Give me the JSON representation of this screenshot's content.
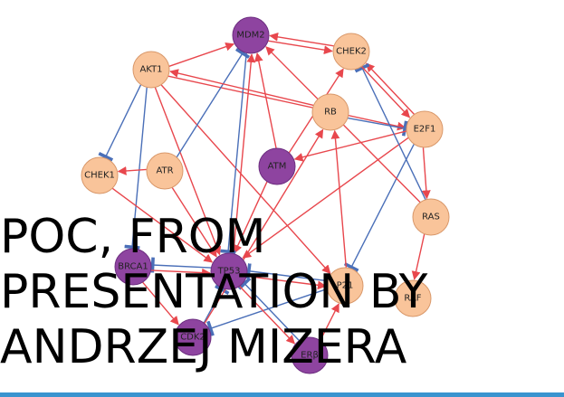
{
  "overlay_lines": [
    "POC, FROM",
    "PRESENTATION BY",
    "ANDRZEJ MIZERA"
  ],
  "colors": {
    "activation": "#e8474d",
    "inhibition": "#4a6fb8",
    "node_light_fill": "#f9c49a",
    "node_light_stroke": "#d9986a",
    "node_dark_fill": "#8e44a0",
    "node_dark_stroke": "#6d2f80",
    "bottom_bar": "#3a94cf"
  },
  "nodes": [
    {
      "id": "MDM2",
      "label": "MDM2",
      "style": "dark"
    },
    {
      "id": "CHEK2",
      "label": "CHEK2",
      "style": "light"
    },
    {
      "id": "AKT1",
      "label": "AKT1",
      "style": "light"
    },
    {
      "id": "RB",
      "label": "RB",
      "style": "light"
    },
    {
      "id": "E2F1",
      "label": "E2F1",
      "style": "light"
    },
    {
      "id": "CHEK1",
      "label": "CHEK1",
      "style": "light"
    },
    {
      "id": "ATR",
      "label": "ATR",
      "style": "light"
    },
    {
      "id": "ATM",
      "label": "ATM",
      "style": "dark"
    },
    {
      "id": "RAS",
      "label": "RAS",
      "style": "light"
    },
    {
      "id": "BRCA1",
      "label": "BRCA1",
      "style": "dark"
    },
    {
      "id": "TP53",
      "label": "TP53",
      "style": "dark"
    },
    {
      "id": "P21",
      "label": "P21",
      "style": "light"
    },
    {
      "id": "RAF",
      "label": "RAF",
      "style": "light"
    },
    {
      "id": "CDK2",
      "label": "CDK2",
      "style": "dark"
    },
    {
      "id": "ERB",
      "label": "ERβ",
      "style": "dark"
    }
  ],
  "edges": [
    {
      "from": "AKT1",
      "to": "MDM2",
      "type": "activation"
    },
    {
      "from": "MDM2",
      "to": "CHEK2",
      "type": "activation"
    },
    {
      "from": "CHEK2",
      "to": "MDM2",
      "type": "activation"
    },
    {
      "from": "AKT1",
      "to": "CHEK1",
      "type": "inhibition"
    },
    {
      "from": "AKT1",
      "to": "TP53",
      "type": "activation"
    },
    {
      "from": "AKT1",
      "to": "E2F1",
      "type": "activation"
    },
    {
      "from": "AKT1",
      "to": "P21",
      "type": "activation"
    },
    {
      "from": "AKT1",
      "to": "BRCA1",
      "type": "inhibition"
    },
    {
      "from": "RB",
      "to": "E2F1",
      "type": "inhibition"
    },
    {
      "from": "E2F1",
      "to": "CHEK2",
      "type": "activation"
    },
    {
      "from": "E2F1",
      "to": "ATM",
      "type": "activation"
    },
    {
      "from": "E2F1",
      "to": "TP53",
      "type": "activation"
    },
    {
      "from": "E2F1",
      "to": "P21",
      "type": "inhibition"
    },
    {
      "from": "E2F1",
      "to": "RAS",
      "type": "activation"
    },
    {
      "from": "RAS",
      "to": "RAF",
      "type": "activation"
    },
    {
      "from": "RAS",
      "to": "CHEK2",
      "type": "inhibition"
    },
    {
      "from": "RAS",
      "to": "MDM2",
      "type": "activation"
    },
    {
      "from": "ATR",
      "to": "CHEK1",
      "type": "activation"
    },
    {
      "from": "ATR",
      "to": "TP53",
      "type": "activation"
    },
    {
      "from": "ATR",
      "to": "MDM2",
      "type": "inhibition"
    },
    {
      "from": "ATM",
      "to": "MDM2",
      "type": "activation"
    },
    {
      "from": "ATM",
      "to": "TP53",
      "type": "activation"
    },
    {
      "from": "ATM",
      "to": "CHEK2",
      "type": "activation"
    },
    {
      "from": "TP53",
      "to": "MDM2",
      "type": "activation"
    },
    {
      "from": "MDM2",
      "to": "TP53",
      "type": "inhibition"
    },
    {
      "from": "TP53",
      "to": "P21",
      "type": "activation"
    },
    {
      "from": "TP53",
      "to": "BRCA1",
      "type": "inhibition"
    },
    {
      "from": "BRCA1",
      "to": "TP53",
      "type": "activation"
    },
    {
      "from": "BRCA1",
      "to": "CDK2",
      "type": "activation"
    },
    {
      "from": "P21",
      "to": "CDK2",
      "type": "inhibition"
    },
    {
      "from": "P21",
      "to": "TP53",
      "type": "inhibition"
    },
    {
      "from": "CDK2",
      "to": "TP53",
      "type": "inhibition"
    },
    {
      "from": "CDK2",
      "to": "RB",
      "type": "activation"
    },
    {
      "from": "ERB",
      "to": "TP53",
      "type": "inhibition"
    },
    {
      "from": "ERB",
      "to": "P21",
      "type": "activation"
    },
    {
      "from": "P21",
      "to": "RB",
      "type": "activation"
    },
    {
      "from": "CHEK1",
      "to": "TP53",
      "type": "activation"
    },
    {
      "from": "RB",
      "to": "AKT1",
      "type": "activation"
    },
    {
      "from": "CHEK2",
      "to": "E2F1",
      "type": "activation"
    },
    {
      "from": "TP53",
      "to": "ERB",
      "type": "activation"
    }
  ]
}
